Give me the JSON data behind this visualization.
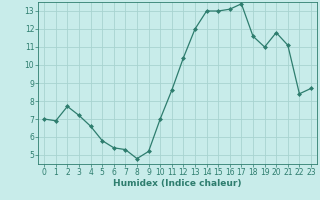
{
  "x": [
    0,
    1,
    2,
    3,
    4,
    5,
    6,
    7,
    8,
    9,
    10,
    11,
    12,
    13,
    14,
    15,
    16,
    17,
    18,
    19,
    20,
    21,
    22,
    23
  ],
  "y": [
    7.0,
    6.9,
    7.7,
    7.2,
    6.6,
    5.8,
    5.4,
    5.3,
    4.8,
    5.2,
    7.0,
    8.6,
    10.4,
    12.0,
    13.0,
    13.0,
    13.1,
    13.4,
    11.6,
    11.0,
    11.8,
    11.1,
    8.4,
    8.7
  ],
  "xlabel": "Humidex (Indice chaleur)",
  "xlim": [
    -0.5,
    23.5
  ],
  "ylim": [
    4.5,
    13.5
  ],
  "yticks": [
    5,
    6,
    7,
    8,
    9,
    10,
    11,
    12,
    13
  ],
  "xticks": [
    0,
    1,
    2,
    3,
    4,
    5,
    6,
    7,
    8,
    9,
    10,
    11,
    12,
    13,
    14,
    15,
    16,
    17,
    18,
    19,
    20,
    21,
    22,
    23
  ],
  "line_color": "#2e7d6e",
  "marker": "D",
  "marker_size": 2.0,
  "bg_color": "#c8ecea",
  "grid_color": "#a8d4d0",
  "tick_color": "#2e7d6e",
  "label_color": "#2e7d6e",
  "xlabel_fontsize": 6.5,
  "tick_fontsize": 5.5
}
